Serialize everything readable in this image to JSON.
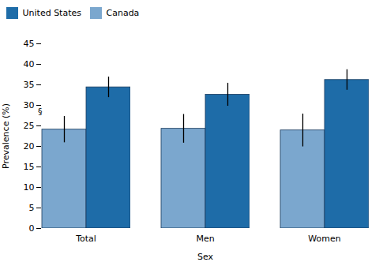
{
  "chart_data": {
    "type": "bar",
    "categories": [
      "Total",
      "Men",
      "Women"
    ],
    "xlabel": "Sex",
    "ylabel": "Prevalence (%)",
    "series": [
      {
        "name": "Canada",
        "color": "#7BA7CE",
        "values": [
          24.1,
          24.3,
          23.9
        ],
        "errors_low": [
          3.2,
          3.5,
          4.0
        ],
        "errors_high": [
          3.2,
          3.5,
          4.0
        ]
      },
      {
        "name": "United States",
        "color": "#1E6CA8",
        "values": [
          34.4,
          32.6,
          36.2
        ],
        "errors_low": [
          2.5,
          2.8,
          2.5
        ],
        "errors_high": [
          2.5,
          2.8,
          2.5
        ]
      }
    ],
    "ylim": [
      0,
      45
    ],
    "yticks": [
      0,
      5,
      10,
      15,
      20,
      25,
      30,
      35,
      40,
      45
    ],
    "grid": false,
    "legend": "upper left",
    "annotations": [
      {
        "text": "§",
        "category": "Total",
        "series": "Canada"
      }
    ]
  }
}
